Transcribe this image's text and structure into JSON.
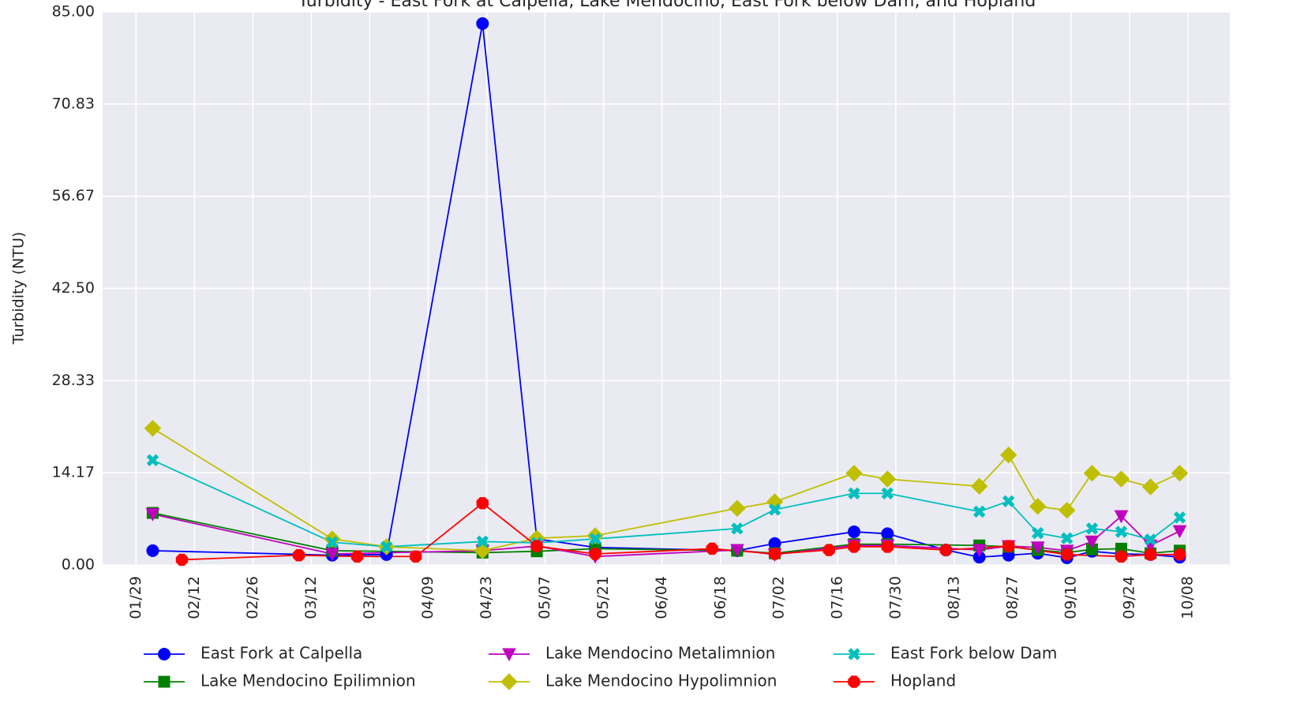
{
  "chart_data": {
    "type": "line",
    "title": "Turbidity - East Fork at Calpella, Lake Mendocino, East Fork below Dam, and Hopland",
    "ylabel": "Turbidity (NTU)",
    "ylim": [
      0,
      85
    ],
    "yticks": [
      {
        "value": 0,
        "label": "0.00"
      },
      {
        "value": 14.17,
        "label": "14.17"
      },
      {
        "value": 28.33,
        "label": "28.33"
      },
      {
        "value": 42.5,
        "label": "42.50"
      },
      {
        "value": 56.67,
        "label": "56.67"
      },
      {
        "value": 70.83,
        "label": "70.83"
      },
      {
        "value": 85,
        "label": "85.00"
      }
    ],
    "xlim": [
      "01/21",
      "10/18"
    ],
    "xticks": [
      "01/29",
      "02/12",
      "02/26",
      "03/12",
      "03/26",
      "04/09",
      "04/23",
      "05/07",
      "05/21",
      "06/04",
      "06/18",
      "07/02",
      "07/16",
      "07/30",
      "08/13",
      "08/27",
      "09/10",
      "09/24",
      "10/08"
    ],
    "grid": true,
    "legend": "bottom",
    "series": [
      {
        "name": "East Fork at Calpella",
        "color": "#0000ff",
        "marker": "circle",
        "x": [
          "02/02",
          "03/17",
          "03/30",
          "04/22",
          "05/05",
          "05/19",
          "06/22",
          "07/01",
          "07/20",
          "07/28",
          "08/11",
          "08/19",
          "08/26",
          "09/02",
          "09/09",
          "09/15",
          "09/22",
          "09/29",
          "10/06"
        ],
        "values": [
          2.2,
          1.5,
          1.6,
          83.2,
          4.0,
          2.7,
          2.2,
          3.3,
          5.1,
          4.8,
          2.3,
          1.2,
          1.5,
          1.8,
          1.1,
          2.1,
          1.7,
          1.6,
          1.2
        ]
      },
      {
        "name": "Lake Mendocino Epilimnion",
        "color": "#008000",
        "marker": "square",
        "x": [
          "02/02",
          "03/17",
          "04/22",
          "05/05",
          "05/19",
          "06/22",
          "07/01",
          "07/20",
          "07/28",
          "08/19",
          "08/26",
          "09/02",
          "09/09",
          "09/15",
          "09/22",
          "09/29",
          "10/06"
        ],
        "values": [
          8.0,
          2.2,
          1.9,
          2.1,
          2.5,
          2.2,
          1.8,
          3.2,
          3.2,
          3.0,
          2.8,
          2.3,
          1.9,
          2.4,
          2.5,
          1.8,
          2.2
        ]
      },
      {
        "name": "Lake Mendocino Metalimnion",
        "color": "#bf00bf",
        "marker": "triangle-down",
        "x": [
          "02/02",
          "03/17",
          "04/22",
          "05/05",
          "05/19",
          "06/22",
          "07/01",
          "07/20",
          "07/28",
          "08/19",
          "08/26",
          "09/02",
          "09/09",
          "09/15",
          "09/22",
          "09/29",
          "10/06"
        ],
        "values": [
          7.8,
          1.7,
          2.2,
          2.9,
          1.3,
          2.3,
          1.6,
          3.0,
          3.0,
          2.3,
          2.9,
          2.7,
          2.2,
          3.6,
          7.5,
          3.0,
          5.2
        ]
      },
      {
        "name": "Lake Mendocino Hypolimnion",
        "color": "#bfbf00",
        "marker": "diamond",
        "x": [
          "02/02",
          "03/17",
          "03/30",
          "04/22",
          "05/05",
          "05/19",
          "06/22",
          "07/01",
          "07/20",
          "07/28",
          "08/19",
          "08/26",
          "09/02",
          "09/09",
          "09/15",
          "09/22",
          "09/29",
          "10/06"
        ],
        "values": [
          21.0,
          4.0,
          2.8,
          2.2,
          4.1,
          4.5,
          8.7,
          9.7,
          14.1,
          13.2,
          12.1,
          16.9,
          9.0,
          8.4,
          14.1,
          13.2,
          12.0,
          14.1
        ]
      },
      {
        "name": "East Fork below Dam",
        "color": "#00bfbf",
        "marker": "x",
        "x": [
          "02/02",
          "03/17",
          "03/30",
          "04/22",
          "05/05",
          "05/19",
          "06/22",
          "07/01",
          "07/20",
          "07/28",
          "08/19",
          "08/26",
          "09/02",
          "09/09",
          "09/15",
          "09/22",
          "09/29",
          "10/06"
        ],
        "values": [
          16.1,
          3.5,
          2.8,
          3.6,
          3.4,
          4.0,
          5.6,
          8.5,
          11.0,
          11.0,
          8.2,
          9.8,
          4.9,
          4.1,
          5.6,
          5.1,
          3.9,
          7.3
        ]
      },
      {
        "name": "Hopland",
        "color": "#ff0000",
        "marker": "octagon",
        "x": [
          "02/09",
          "03/09",
          "03/23",
          "04/06",
          "04/22",
          "05/05",
          "05/19",
          "06/16",
          "07/01",
          "07/14",
          "07/20",
          "07/28",
          "08/11",
          "08/26",
          "09/09",
          "09/22",
          "09/29",
          "10/06"
        ],
        "values": [
          0.8,
          1.5,
          1.3,
          1.3,
          9.5,
          2.9,
          1.7,
          2.5,
          1.7,
          2.3,
          2.8,
          2.8,
          2.3,
          2.9,
          1.6,
          1.3,
          1.6,
          1.6
        ]
      }
    ]
  }
}
